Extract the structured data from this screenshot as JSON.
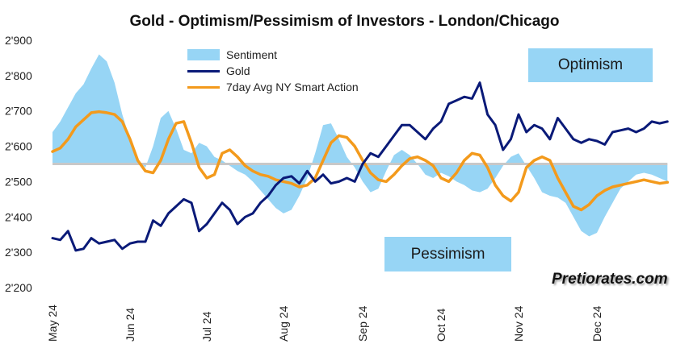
{
  "chart_data": {
    "type": "line",
    "title": "Gold - Optimism/Pessimism of Investors - London/Chicago",
    "xlabel": "",
    "ylabel": "",
    "ylim": [
      2200,
      2900
    ],
    "yticks": [
      "2'200",
      "2'300",
      "2'400",
      "2'500",
      "2'600",
      "2'700",
      "2'800",
      "2'900"
    ],
    "ytick_values": [
      2200,
      2300,
      2400,
      2500,
      2600,
      2700,
      2800,
      2900
    ],
    "x_range": [
      0,
      7.95
    ],
    "months": [
      "May 24",
      "Jun 24",
      "Jul 24",
      "Aug 24",
      "Sep 24",
      "Oct 24",
      "Nov 24",
      "Dec 24"
    ],
    "baseline": 2550,
    "grid": false,
    "legend_position": "top-left",
    "colors": {
      "sentiment": "#97d5f5",
      "gold": "#0a1a78",
      "avg": "#f39a1c"
    },
    "series": [
      {
        "name": "Sentiment",
        "type": "area",
        "x": [
          0,
          0.1,
          0.2,
          0.3,
          0.4,
          0.5,
          0.6,
          0.7,
          0.8,
          0.9,
          1.0,
          1.1,
          1.2,
          1.3,
          1.4,
          1.5,
          1.6,
          1.7,
          1.8,
          1.9,
          2.0,
          2.1,
          2.2,
          2.3,
          2.4,
          2.5,
          2.6,
          2.7,
          2.8,
          2.9,
          3.0,
          3.1,
          3.2,
          3.3,
          3.4,
          3.5,
          3.6,
          3.7,
          3.8,
          3.9,
          4.0,
          4.1,
          4.2,
          4.3,
          4.4,
          4.5,
          4.6,
          4.7,
          4.8,
          4.9,
          5.0,
          5.1,
          5.2,
          5.3,
          5.4,
          5.5,
          5.6,
          5.7,
          5.8,
          5.9,
          6.0,
          6.1,
          6.2,
          6.3,
          6.4,
          6.5,
          6.6,
          6.7,
          6.8,
          6.9,
          7.0,
          7.1,
          7.2,
          7.3,
          7.4,
          7.5,
          7.6,
          7.7,
          7.8,
          7.9
        ],
        "values": [
          2640,
          2670,
          2710,
          2750,
          2775,
          2820,
          2860,
          2840,
          2780,
          2690,
          2620,
          2560,
          2540,
          2600,
          2680,
          2700,
          2650,
          2590,
          2580,
          2610,
          2600,
          2570,
          2560,
          2545,
          2530,
          2520,
          2500,
          2475,
          2450,
          2425,
          2410,
          2420,
          2460,
          2510,
          2580,
          2660,
          2665,
          2620,
          2570,
          2540,
          2500,
          2470,
          2480,
          2530,
          2575,
          2590,
          2575,
          2550,
          2520,
          2510,
          2525,
          2515,
          2500,
          2490,
          2475,
          2470,
          2480,
          2510,
          2545,
          2570,
          2580,
          2545,
          2510,
          2470,
          2460,
          2455,
          2440,
          2400,
          2360,
          2345,
          2355,
          2400,
          2440,
          2480,
          2500,
          2520,
          2525,
          2520,
          2510,
          2500
        ]
      },
      {
        "name": "Gold",
        "type": "line",
        "x": [
          0,
          0.1,
          0.2,
          0.3,
          0.4,
          0.5,
          0.6,
          0.7,
          0.8,
          0.9,
          1.0,
          1.1,
          1.2,
          1.3,
          1.4,
          1.5,
          1.6,
          1.7,
          1.8,
          1.9,
          2.0,
          2.1,
          2.2,
          2.3,
          2.4,
          2.5,
          2.6,
          2.7,
          2.8,
          2.9,
          3.0,
          3.1,
          3.2,
          3.3,
          3.4,
          3.5,
          3.6,
          3.7,
          3.8,
          3.9,
          4.0,
          4.1,
          4.2,
          4.3,
          4.4,
          4.5,
          4.6,
          4.7,
          4.8,
          4.9,
          5.0,
          5.1,
          5.2,
          5.3,
          5.4,
          5.5,
          5.6,
          5.7,
          5.8,
          5.9,
          6.0,
          6.1,
          6.2,
          6.3,
          6.4,
          6.5,
          6.6,
          6.7,
          6.8,
          6.9,
          7.0,
          7.1,
          7.2,
          7.3,
          7.4,
          7.5,
          7.6,
          7.7,
          7.8,
          7.9
        ],
        "values": [
          2340,
          2335,
          2360,
          2305,
          2310,
          2340,
          2325,
          2330,
          2335,
          2310,
          2325,
          2330,
          2330,
          2390,
          2375,
          2410,
          2430,
          2450,
          2440,
          2360,
          2380,
          2410,
          2440,
          2420,
          2380,
          2400,
          2410,
          2440,
          2460,
          2490,
          2510,
          2515,
          2495,
          2530,
          2500,
          2520,
          2495,
          2500,
          2510,
          2500,
          2550,
          2580,
          2570,
          2600,
          2630,
          2660,
          2660,
          2640,
          2620,
          2650,
          2670,
          2720,
          2730,
          2740,
          2735,
          2780,
          2690,
          2660,
          2590,
          2620,
          2690,
          2640,
          2660,
          2650,
          2620,
          2680,
          2650,
          2620,
          2610,
          2620,
          2615,
          2605,
          2640,
          2645,
          2650,
          2640,
          2650,
          2670,
          2665,
          2670
        ]
      },
      {
        "name": "7day Avg NY Smart Action",
        "type": "line",
        "x": [
          0,
          0.1,
          0.2,
          0.3,
          0.4,
          0.5,
          0.6,
          0.7,
          0.8,
          0.9,
          1.0,
          1.1,
          1.2,
          1.3,
          1.4,
          1.5,
          1.6,
          1.7,
          1.8,
          1.9,
          2.0,
          2.1,
          2.2,
          2.3,
          2.4,
          2.5,
          2.6,
          2.7,
          2.8,
          2.9,
          3.0,
          3.1,
          3.2,
          3.3,
          3.4,
          3.5,
          3.6,
          3.7,
          3.8,
          3.9,
          4.0,
          4.1,
          4.2,
          4.3,
          4.4,
          4.5,
          4.6,
          4.7,
          4.8,
          4.9,
          5.0,
          5.1,
          5.2,
          5.3,
          5.4,
          5.5,
          5.6,
          5.7,
          5.8,
          5.9,
          6.0,
          6.1,
          6.2,
          6.3,
          6.4,
          6.5,
          6.6,
          6.7,
          6.8,
          6.9,
          7.0,
          7.1,
          7.2,
          7.3,
          7.4,
          7.5,
          7.6,
          7.7,
          7.8,
          7.9
        ],
        "values": [
          2585,
          2595,
          2620,
          2655,
          2675,
          2695,
          2698,
          2695,
          2690,
          2670,
          2620,
          2560,
          2530,
          2525,
          2560,
          2620,
          2665,
          2670,
          2610,
          2540,
          2510,
          2520,
          2580,
          2590,
          2570,
          2545,
          2530,
          2520,
          2515,
          2505,
          2500,
          2495,
          2485,
          2490,
          2510,
          2560,
          2610,
          2630,
          2625,
          2600,
          2560,
          2525,
          2505,
          2500,
          2520,
          2545,
          2565,
          2570,
          2560,
          2545,
          2510,
          2500,
          2525,
          2560,
          2580,
          2575,
          2540,
          2490,
          2460,
          2445,
          2470,
          2540,
          2560,
          2570,
          2560,
          2510,
          2470,
          2430,
          2420,
          2435,
          2460,
          2475,
          2485,
          2490,
          2495,
          2500,
          2505,
          2500,
          2495,
          2498
        ]
      }
    ],
    "annotations": {
      "optimism": "Optimism",
      "pessimism": "Pessimism",
      "source": "Pretiorates.com"
    }
  }
}
